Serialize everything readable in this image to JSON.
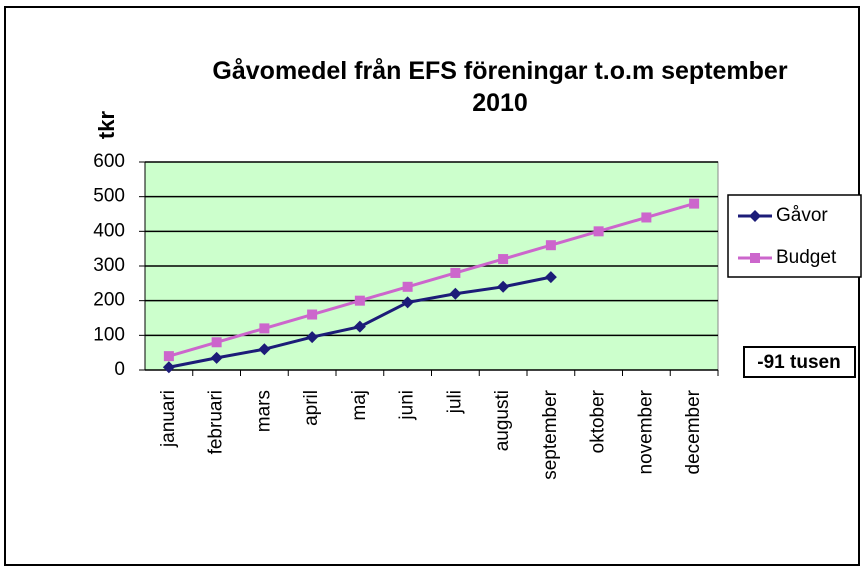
{
  "chart_data": {
    "type": "line",
    "title": "Gåvomedel från EFS föreningar t.o.m september 2010",
    "y_label": "tkr",
    "categories": [
      "januari",
      "februari",
      "mars",
      "april",
      "maj",
      "juni",
      "juli",
      "augusti",
      "september",
      "oktober",
      "november",
      "december"
    ],
    "series": [
      {
        "name": "Gåvor",
        "color": "#1c1c78",
        "marker": "diamond",
        "values": [
          8,
          35,
          60,
          95,
          125,
          195,
          220,
          240,
          268,
          null,
          null,
          null
        ]
      },
      {
        "name": "Budget",
        "color": "#cc66cc",
        "marker": "square",
        "values": [
          40,
          80,
          120,
          160,
          200,
          240,
          280,
          320,
          360,
          400,
          440,
          480
        ]
      }
    ],
    "ylim": [
      0,
      600
    ],
    "yticks": [
      0,
      100,
      200,
      300,
      400,
      500,
      600
    ],
    "grid": true,
    "plot_background": "#ccffcc",
    "legend": "right",
    "annotation": "-91 tusen"
  }
}
